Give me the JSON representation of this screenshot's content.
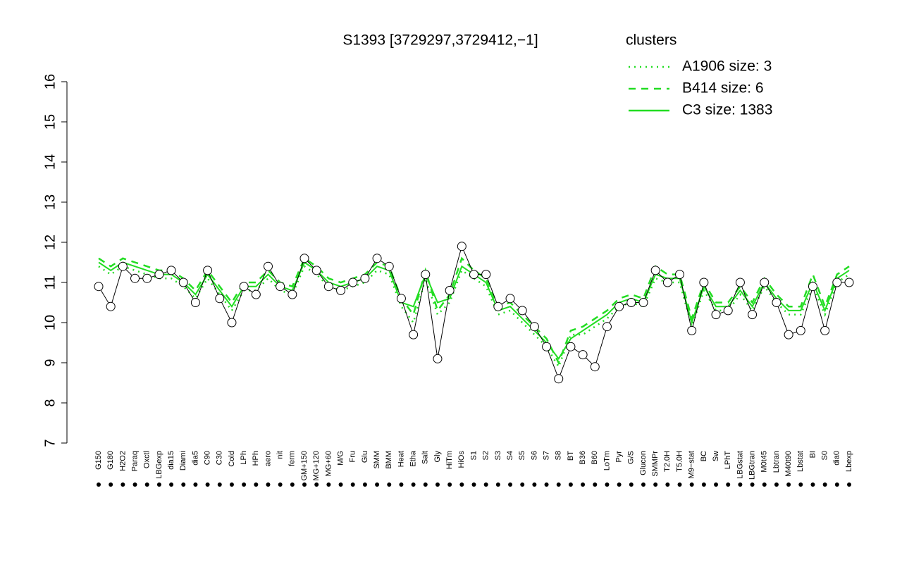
{
  "chart_data": {
    "type": "line",
    "title": "S1393 [3729297,3729412,−1]",
    "legend_title": "clusters",
    "legend_color": "#22dd22",
    "categories": [
      "G150",
      "G180",
      "H2O2",
      "Paraq",
      "Oxctl",
      "LBGexp",
      "dia15",
      "Diami",
      "dia5",
      "C90",
      "C30",
      "Cold",
      "LPh",
      "HPh",
      "aero",
      "nit",
      "ferm",
      "GM+150",
      "MG+120",
      "MG+60",
      "M/G",
      "Fru",
      "Glu",
      "SMM",
      "BMM",
      "Heat",
      "Etha",
      "Salt",
      "Gly",
      "HiTm",
      "HiOs",
      "S1",
      "S2",
      "S3",
      "S4",
      "S5",
      "S6",
      "S7",
      "S8",
      "BT",
      "B36",
      "B60",
      "LoTm",
      "Pyr",
      "G/S",
      "Glucon",
      "SMMPr",
      "T2.0H",
      "T5.0H",
      "M9−stat",
      "BC",
      "Sw",
      "LPhT",
      "LBGstat",
      "LBGtran",
      "M0t45",
      "Lbtran",
      "M40t90",
      "Lbstat",
      "BI",
      "S0",
      "dia0",
      "Lbexp"
    ],
    "values": [
      10.9,
      10.4,
      11.4,
      11.1,
      11.1,
      11.2,
      11.3,
      11.0,
      10.5,
      11.3,
      10.6,
      10.0,
      10.9,
      10.7,
      11.4,
      10.9,
      10.7,
      11.6,
      11.3,
      10.9,
      10.8,
      11.0,
      11.1,
      11.6,
      11.4,
      10.6,
      9.7,
      11.2,
      9.1,
      10.8,
      11.9,
      11.2,
      11.2,
      10.4,
      10.6,
      10.3,
      9.9,
      9.4,
      8.6,
      9.4,
      9.2,
      8.9,
      9.9,
      10.4,
      10.5,
      10.5,
      11.3,
      11.0,
      11.2,
      9.8,
      11.0,
      10.2,
      10.3,
      11.0,
      10.2,
      11.0,
      10.5,
      9.7,
      9.8,
      10.9,
      9.8,
      11.0,
      11.0
    ],
    "series": [
      {
        "name": "A1906 size: 3",
        "color": "#22dd22",
        "style": "dotted",
        "values": [
          11.4,
          11.2,
          11.4,
          11.3,
          11.2,
          11.1,
          11.1,
          10.9,
          10.6,
          11.1,
          10.7,
          10.3,
          10.8,
          10.8,
          11.1,
          10.8,
          10.7,
          11.4,
          11.2,
          10.9,
          10.8,
          10.9,
          11.0,
          11.3,
          11.2,
          10.4,
          10.0,
          11.1,
          10.2,
          10.5,
          11.3,
          11.1,
          10.9,
          10.2,
          10.3,
          10.0,
          9.7,
          9.4,
          8.9,
          9.7,
          9.7,
          9.9,
          10.1,
          10.4,
          10.5,
          10.4,
          11.1,
          11.0,
          11.0,
          9.9,
          10.8,
          10.3,
          10.3,
          10.7,
          10.3,
          10.9,
          10.5,
          10.2,
          10.2,
          10.9,
          10.2,
          11.0,
          11.2
        ]
      },
      {
        "name": "B414 size: 6",
        "color": "#22dd22",
        "style": "dashed",
        "values": [
          11.6,
          11.4,
          11.6,
          11.5,
          11.4,
          11.3,
          11.3,
          11.1,
          10.8,
          11.3,
          10.9,
          10.5,
          11.0,
          11.0,
          11.3,
          11.0,
          10.9,
          11.6,
          11.4,
          11.1,
          11.0,
          11.1,
          11.2,
          11.5,
          11.4,
          10.6,
          10.2,
          11.3,
          10.3,
          10.7,
          11.6,
          11.3,
          11.1,
          10.4,
          10.5,
          10.2,
          9.9,
          9.6,
          9.0,
          9.8,
          9.9,
          10.1,
          10.3,
          10.6,
          10.7,
          10.6,
          11.4,
          11.2,
          11.2,
          10.1,
          11.0,
          10.5,
          10.5,
          10.9,
          10.5,
          11.1,
          10.7,
          10.4,
          10.4,
          11.2,
          10.4,
          11.2,
          11.4
        ]
      },
      {
        "name": "C3 size: 1383",
        "color": "#22dd22",
        "style": "solid",
        "values": [
          11.5,
          11.3,
          11.5,
          11.4,
          11.3,
          11.2,
          11.2,
          11.0,
          10.7,
          11.2,
          10.8,
          10.4,
          10.9,
          10.9,
          11.2,
          10.9,
          10.8,
          11.5,
          11.3,
          11.0,
          10.9,
          11.0,
          11.1,
          11.4,
          11.3,
          10.5,
          10.4,
          11.2,
          10.5,
          10.6,
          11.4,
          11.2,
          11.0,
          10.3,
          10.4,
          10.1,
          9.8,
          9.5,
          9.1,
          9.6,
          9.8,
          10.0,
          10.2,
          10.5,
          10.6,
          10.5,
          11.2,
          11.1,
          11.1,
          10.0,
          10.9,
          10.4,
          10.4,
          10.8,
          10.4,
          11.0,
          10.6,
          10.3,
          10.3,
          11.0,
          10.3,
          11.1,
          11.3
        ]
      }
    ],
    "ylim": [
      7,
      16
    ],
    "yticks": [
      7,
      8,
      9,
      10,
      11,
      12,
      13,
      14,
      15,
      16
    ],
    "grid": false
  }
}
